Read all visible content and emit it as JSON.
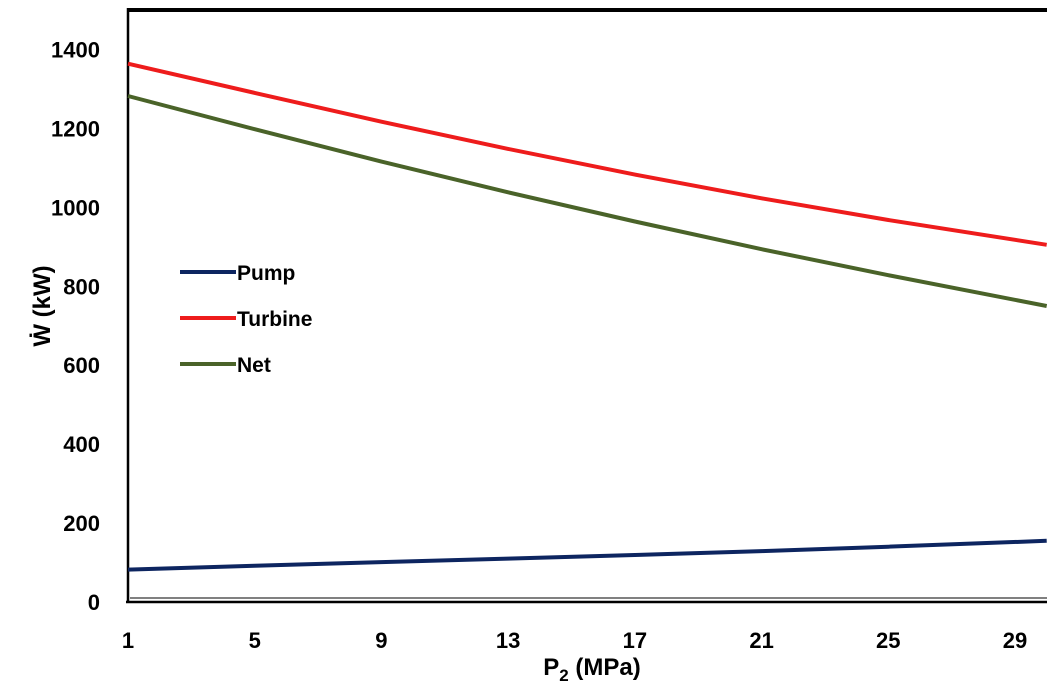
{
  "chart_data": {
    "type": "line",
    "xlabel_main": "P",
    "xlabel_sub": "2",
    "xlabel_unit": "(MPa)",
    "ylabel": "Ẇ (kW)",
    "xlim": [
      1,
      30
    ],
    "ylim": [
      0,
      1500
    ],
    "x_ticks": [
      "1",
      "5",
      "9",
      "13",
      "17",
      "21",
      "25",
      "29"
    ],
    "y_ticks": [
      "0",
      "200",
      "400",
      "600",
      "800",
      "1000",
      "1200",
      "1400"
    ],
    "legend_position": "left-middle",
    "series": [
      {
        "name": "Pump",
        "color": "#0d2560",
        "x": [
          1,
          5,
          9,
          13,
          17,
          21,
          25,
          30
        ],
        "y": [
          82,
          92,
          101,
          110,
          119,
          129,
          140,
          155
        ]
      },
      {
        "name": "Turbine",
        "color": "#ee1c1c",
        "x": [
          1,
          5,
          9,
          13,
          17,
          21,
          25,
          30
        ],
        "y": [
          1364,
          1290,
          1217,
          1148,
          1083,
          1023,
          968,
          905
        ]
      },
      {
        "name": "Net",
        "color": "#4a6329",
        "x": [
          1,
          5,
          9,
          13,
          17,
          21,
          25,
          30
        ],
        "y": [
          1282,
          1198,
          1116,
          1038,
          964,
          894,
          828,
          750
        ]
      }
    ]
  }
}
